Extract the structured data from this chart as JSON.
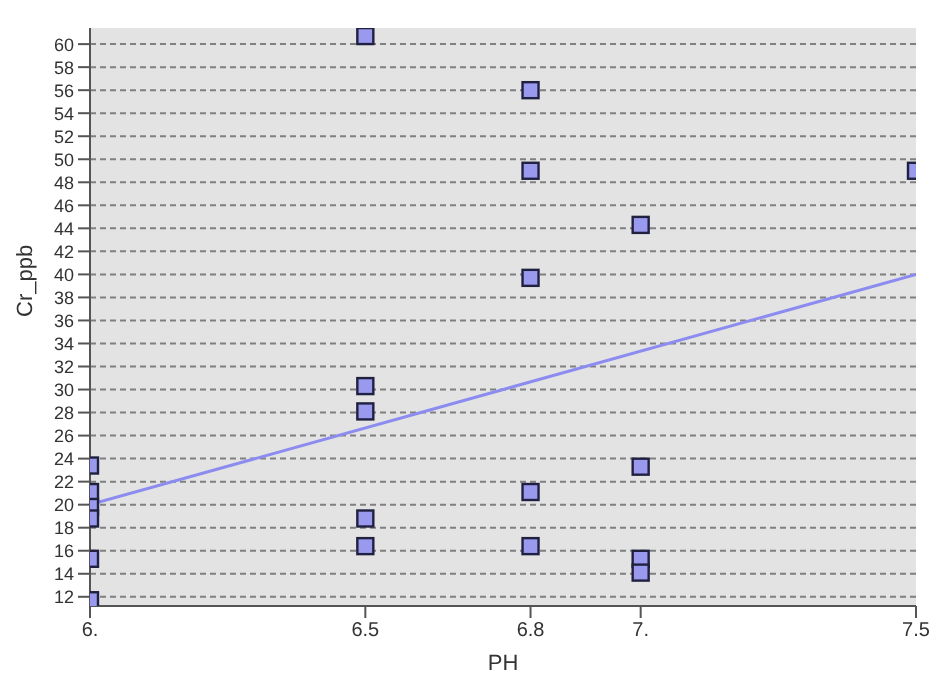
{
  "chart_data": {
    "type": "scatter",
    "xlabel": "PH",
    "ylabel": "Cr_ppb",
    "xlim": [
      6,
      7.5
    ],
    "xticks": [
      {
        "value": 6,
        "label": "6."
      },
      6.5,
      6.8,
      {
        "value": 7,
        "label": "7."
      },
      7.5
    ],
    "ylim": [
      11.2,
      61.4
    ],
    "yticks": [
      12,
      14,
      16,
      18,
      20,
      22,
      24,
      26,
      28,
      30,
      32,
      34,
      36,
      38,
      40,
      42,
      44,
      46,
      48,
      50,
      52,
      54,
      56,
      58,
      60
    ],
    "grid": "y",
    "series": [
      {
        "marker": "square",
        "color": "#9999ee",
        "x": [
          6,
          6,
          6,
          6,
          6,
          6,
          6.5,
          6.5,
          6.5,
          6.5,
          6.5,
          6.8,
          6.8,
          6.8,
          6.8,
          6.8,
          7,
          7,
          7,
          7,
          7.5
        ],
        "values": [
          23.4,
          21.1,
          19.8,
          18.8,
          15.3,
          11.7,
          60.7,
          30.3,
          28.1,
          18.8,
          16.4,
          56,
          49,
          39.7,
          21.1,
          16.4,
          44.3,
          23.3,
          15.3,
          14.1,
          49
        ]
      },
      {
        "type": "line",
        "marker": "none",
        "color": "#8c8cf0",
        "x": [
          6,
          7.5
        ],
        "values": [
          20,
          40
        ]
      }
    ]
  }
}
